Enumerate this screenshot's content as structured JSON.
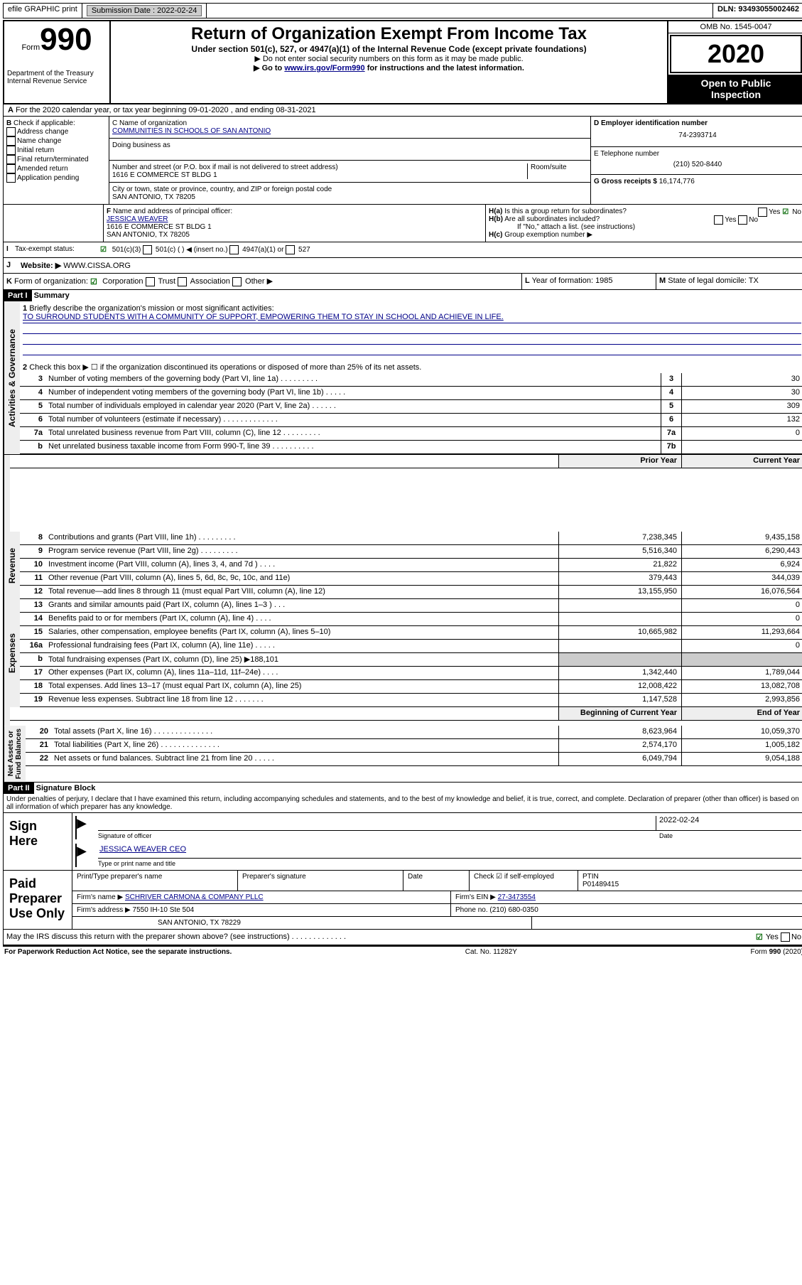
{
  "top": {
    "efile": "efile GRAPHIC print",
    "subdate_lbl": "Submission Date :",
    "subdate": "2022-02-24",
    "dln": "DLN: 93493055002462"
  },
  "hdr": {
    "form": "Form",
    "num": "990",
    "dept": "Department of the Treasury\nInternal Revenue Service",
    "title": "Return of Organization Exempt From Income Tax",
    "sub1": "Under section 501(c), 527, or 4947(a)(1) of the Internal Revenue Code (except private foundations)",
    "sub2": "▶ Do not enter social security numbers on this form as it may be made public.",
    "sub3a": "▶ Go to ",
    "sub3link": "www.irs.gov/Form990",
    "sub3b": " for instructions and the latest information.",
    "omb": "OMB No. 1545-0047",
    "year": "2020",
    "open": "Open to Public\nInspection"
  },
  "A": {
    "line": "For the 2020 calendar year, or tax year beginning 09-01-2020    , and ending 08-31-2021",
    "B": {
      "lbl": "Check if applicable:",
      "opts": [
        "Address change",
        "Name change",
        "Initial return",
        "Final return/terminated",
        "Amended return",
        "Application pending"
      ]
    },
    "C": {
      "namelbl": "C Name of organization",
      "name": "COMMUNITIES IN SCHOOLS OF SAN ANTONIO",
      "dba": "Doing business as",
      "addrlbl": "Number and street (or P.O. box if mail is not delivered to street address)",
      "room": "Room/suite",
      "addr": "1616 E COMMERCE ST BLDG 1",
      "citylbl": "City or town, state or province, country, and ZIP or foreign postal code",
      "city": "SAN ANTONIO, TX  78205"
    },
    "D": {
      "lbl": "D Employer identification number",
      "val": "74-2393714"
    },
    "E": {
      "lbl": "E Telephone number",
      "val": "(210) 520-8440"
    },
    "G": {
      "lbl": "G Gross receipts $",
      "val": "16,174,776"
    },
    "F": {
      "lbl": "Name and address of principal officer:",
      "name": "JESSICA WEAVER",
      "addr1": "1616 E COMMERCE ST BLDG 1",
      "addr2": "SAN ANTONIO, TX  78205"
    },
    "H": {
      "a": "Is this a group return for subordinates?",
      "b": "Are all subordinates included?",
      "note": "If \"No,\" attach a list. (see instructions)",
      "c": "Group exemption number ▶",
      "yes": "Yes",
      "no": "No"
    }
  },
  "I": {
    "lbl": "Tax-exempt status:",
    "opt1": "501(c)(3)",
    "opt2": "501(c) (  ) ◀ (insert no.)",
    "opt3": "4947(a)(1) or",
    "opt4": "527"
  },
  "J": {
    "lbl": "Website: ▶",
    "val": "WWW.CISSA.ORG"
  },
  "K": {
    "lbl": "Form of organization:",
    "opts": [
      "Corporation",
      "Trust",
      "Association",
      "Other ▶"
    ]
  },
  "L": {
    "lbl": "Year of formation:",
    "val": "1985"
  },
  "M": {
    "lbl": "State of legal domicile:",
    "val": "TX"
  },
  "parts": {
    "I": "Part I",
    "II": "Part II",
    "I_t": "Summary",
    "II_t": "Signature Block"
  },
  "p1": {
    "l1": "Briefly describe the organization's mission or most significant activities:",
    "mission": "TO SURROUND STUDENTS WITH A COMMUNITY OF SUPPORT, EMPOWERING THEM TO STAY IN SCHOOL AND ACHIEVE IN LIFE.",
    "l2": "Check this box ▶ ☐  if the organization discontinued its operations or disposed of more than 25% of its net assets.",
    "rows1": [
      {
        "n": "3",
        "d": "Number of voting members of the governing body (Part VI, line 1a)   .    .    .    .    .    .    .    .    .",
        "b": "3",
        "v": "30"
      },
      {
        "n": "4",
        "d": "Number of independent voting members of the governing body (Part VI, line 1b)   .    .    .    .    .",
        "b": "4",
        "v": "30"
      },
      {
        "n": "5",
        "d": "Total number of individuals employed in calendar year 2020 (Part V, line 2a)   .    .    .    .    .    .",
        "b": "5",
        "v": "309"
      },
      {
        "n": "6",
        "d": "Total number of volunteers (estimate if necessary)   .    .    .    .    .    .    .    .    .    .    .    .    .",
        "b": "6",
        "v": "132"
      },
      {
        "n": "7a",
        "d": "Total unrelated business revenue from Part VIII, column (C), line 12   .    .    .    .    .    .    .    .    .",
        "b": "7a",
        "v": "0"
      },
      {
        "n": "b",
        "d": "Net unrelated business taxable income from Form 990-T, line 39   .    .    .    .    .    .    .    .    .    .",
        "b": "7b",
        "v": ""
      }
    ],
    "col_h": {
      "py": "Prior Year",
      "cy": "Current Year",
      "bcy": "Beginning of Current Year",
      "eoy": "End of Year"
    },
    "rev": [
      {
        "n": "8",
        "d": "Contributions and grants (Part VIII, line 1h)   .    .    .    .    .    .    .    .    .",
        "p": "7,238,345",
        "c": "9,435,158"
      },
      {
        "n": "9",
        "d": "Program service revenue (Part VIII, line 2g)   .    .    .    .    .    .    .    .    .",
        "p": "5,516,340",
        "c": "6,290,443"
      },
      {
        "n": "10",
        "d": "Investment income (Part VIII, column (A), lines 3, 4, and 7d )   .    .    .    .",
        "p": "21,822",
        "c": "6,924"
      },
      {
        "n": "11",
        "d": "Other revenue (Part VIII, column (A), lines 5, 6d, 8c, 9c, 10c, and 11e)",
        "p": "379,443",
        "c": "344,039"
      },
      {
        "n": "12",
        "d": "Total revenue—add lines 8 through 11 (must equal Part VIII, column (A), line 12)",
        "p": "13,155,950",
        "c": "16,076,564"
      }
    ],
    "exp": [
      {
        "n": "13",
        "d": "Grants and similar amounts paid (Part IX, column (A), lines 1–3 )   .    .    .",
        "p": "",
        "c": "0"
      },
      {
        "n": "14",
        "d": "Benefits paid to or for members (Part IX, column (A), line 4)   .    .    .    .",
        "p": "",
        "c": "0"
      },
      {
        "n": "15",
        "d": "Salaries, other compensation, employee benefits (Part IX, column (A), lines 5–10)",
        "p": "10,665,982",
        "c": "11,293,664"
      },
      {
        "n": "16a",
        "d": "Professional fundraising fees (Part IX, column (A), line 11e)   .    .    .    .    .",
        "p": "",
        "c": "0"
      },
      {
        "n": "b",
        "d": "Total fundraising expenses (Part IX, column (D), line 25) ▶188,101",
        "p": "",
        "c": "",
        "noborder": true
      },
      {
        "n": "17",
        "d": "Other expenses (Part IX, column (A), lines 11a–11d, 11f–24e)   .    .    .    .",
        "p": "1,342,440",
        "c": "1,789,044"
      },
      {
        "n": "18",
        "d": "Total expenses. Add lines 13–17 (must equal Part IX, column (A), line 25)",
        "p": "12,008,422",
        "c": "13,082,708"
      },
      {
        "n": "19",
        "d": "Revenue less expenses. Subtract line 18 from line 12   .    .    .    .    .    .    .",
        "p": "1,147,528",
        "c": "2,993,856"
      }
    ],
    "na": [
      {
        "n": "20",
        "d": "Total assets (Part X, line 16)   .    .    .    .    .    .    .    .    .    .    .    .    .    .",
        "p": "8,623,964",
        "c": "10,059,370"
      },
      {
        "n": "21",
        "d": "Total liabilities (Part X, line 26)   .    .    .    .    .    .    .    .    .    .    .    .    .    .",
        "p": "2,574,170",
        "c": "1,005,182"
      },
      {
        "n": "22",
        "d": "Net assets or fund balances. Subtract line 21 from line 20   .    .    .    .    .",
        "p": "6,049,794",
        "c": "9,054,188"
      }
    ],
    "sides": {
      "ag": "Activities & Governance",
      "rev": "Revenue",
      "exp": "Expenses",
      "na": "Net Assets or\nFund Balances"
    }
  },
  "p2": {
    "decl": "Under penalties of perjury, I declare that I have examined this return, including accompanying schedules and statements, and to the best of my knowledge and belief, it is true, correct, and complete. Declaration of preparer (other than officer) is based on all information of which preparer has any knowledge.",
    "sign": "Sign Here",
    "sigoff": "Signature of officer",
    "date": "Date",
    "datev": "2022-02-24",
    "typed": "JESSICA WEAVER  CEO",
    "typedlbl": "Type or print name and title",
    "paid": "Paid Preparer Use Only",
    "hdrs": {
      "pn": "Print/Type preparer's name",
      "ps": "Preparer's signature",
      "dt": "Date",
      "ck": "Check ☑ if self-employed",
      "ptin": "PTIN",
      "ptinv": "P01489415"
    },
    "fn": {
      "lbl": "Firm's name    ▶",
      "val": "SCHRIVER CARMONA & COMPANY PLLC",
      "einlbl": "Firm's EIN ▶",
      "ein": "27-3473554"
    },
    "fa": {
      "lbl": "Firm's address ▶",
      "val1": "7550 IH-10 Ste 504",
      "val2": "SAN ANTONIO, TX  78229",
      "phlbl": "Phone no.",
      "ph": "(210) 680-0350"
    },
    "discuss": "May the IRS discuss this return with the preparer shown above? (see instructions)   .    .    .    .    .    .    .    .    .    .    .    .    ."
  },
  "ftr": {
    "l": "For Paperwork Reduction Act Notice, see the separate instructions.",
    "c": "Cat. No. 11282Y",
    "r": "Form 990 (2020)"
  }
}
